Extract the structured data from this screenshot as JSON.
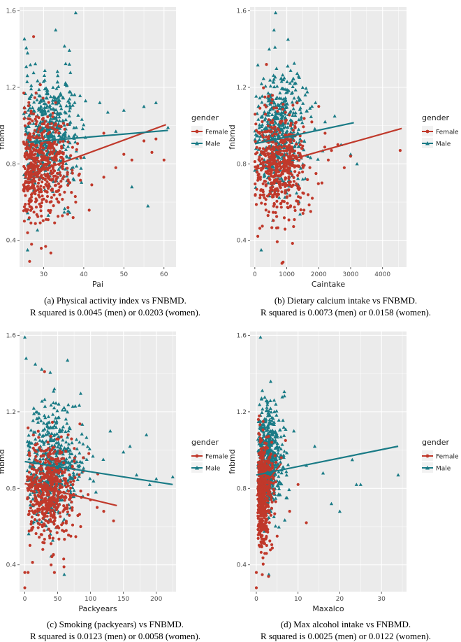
{
  "figure": {
    "panels": [
      {
        "caption_line1": "(a) Physical activity index vs FNBMD.",
        "caption_line2": "R squared is 0.0045 (men) or 0.0203 (women)."
      },
      {
        "caption_line1": "(b) Dietary calcium intake vs FNBMD.",
        "caption_line2": "R squared is 0.0073 (men) or 0.0158 (women)."
      },
      {
        "caption_line1": "(c) Smoking (packyears) vs FNBMD.",
        "caption_line2": "R squared is 0.0123 (men) or 0.0058 (women)."
      },
      {
        "caption_line1": "(d) Max alcohol intake vs FNBMD.",
        "caption_line2": "R squared is 0.0025 (men) or 0.0122 (women)."
      }
    ]
  },
  "colors": {
    "female": "#c0392b",
    "male": "#1a7b86",
    "panel_bg": "#ebebeb",
    "grid": "#ffffff"
  },
  "chart_data": [
    {
      "type": "scatter",
      "title": "(a) Physical activity index vs FNBMD.",
      "xlabel": "Pai",
      "ylabel": "fnbmd",
      "xlim": [
        24,
        63
      ],
      "ylim": [
        0.26,
        1.62
      ],
      "xticks": [
        30,
        40,
        50,
        60
      ],
      "yticks": [
        0.4,
        0.8,
        1.2,
        1.6
      ],
      "legend": {
        "title": "gender",
        "entries": [
          "Female",
          "Male"
        ],
        "placement": "right"
      },
      "series": [
        {
          "name": "Female",
          "marker": "circle",
          "cluster": {
            "x_center": 29.5,
            "x_spread": 3.5,
            "y_center": 0.8,
            "y_spread": 0.14
          },
          "outliers": [
            [
              26.5,
              0.29
            ],
            [
              27,
              0.38
            ],
            [
              26,
              0.44
            ],
            [
              45,
              0.73
            ],
            [
              48,
              0.78
            ],
            [
              50,
              0.85
            ],
            [
              52,
              0.82
            ],
            [
              55,
              0.92
            ],
            [
              58,
              0.93
            ],
            [
              60,
              0.82
            ],
            [
              57,
              0.86
            ],
            [
              45,
              0.96
            ],
            [
              42,
              0.69
            ],
            [
              38,
              0.6
            ]
          ],
          "fit": {
            "x": [
              26,
              60.5
            ],
            "y": [
              0.74,
              1.005
            ]
          }
        },
        {
          "name": "Male",
          "marker": "triangle",
          "cluster": {
            "x_center": 31,
            "x_spread": 3.5,
            "y_center": 0.96,
            "y_spread": 0.15
          },
          "outliers": [
            [
              26,
              0.35
            ],
            [
              38,
              1.59
            ],
            [
              26,
              1.38
            ],
            [
              33,
              1.5
            ],
            [
              46,
              1.07
            ],
            [
              50,
              1.08
            ],
            [
              55,
              1.1
            ],
            [
              58,
              1.12
            ],
            [
              61,
              0.99
            ],
            [
              52,
              0.68
            ],
            [
              56,
              0.58
            ],
            [
              48,
              0.97
            ],
            [
              44,
              1.12
            ]
          ],
          "fit": {
            "x": [
              26,
              61
            ],
            "y": [
              0.913,
              0.975
            ]
          }
        }
      ]
    },
    {
      "type": "scatter",
      "title": "(b) Dietary calcium intake vs FNBMD.",
      "xlabel": "Caintake",
      "ylabel": "fnbmd",
      "xlim": [
        -150,
        4750
      ],
      "ylim": [
        0.26,
        1.62
      ],
      "xticks": [
        0,
        1000,
        2000,
        3000,
        4000
      ],
      "yticks": [
        0.4,
        0.8,
        1.2,
        1.6
      ],
      "legend": {
        "title": "gender",
        "entries": [
          "Female",
          "Male"
        ],
        "placement": "right"
      },
      "series": [
        {
          "name": "Female",
          "marker": "circle",
          "cluster": {
            "x_center": 750,
            "x_spread": 380,
            "y_center": 0.8,
            "y_spread": 0.14
          },
          "outliers": [
            [
              850,
              0.28
            ],
            [
              4550,
              0.87
            ],
            [
              2800,
              0.78
            ],
            [
              2400,
              0.87
            ],
            [
              2200,
              0.96
            ],
            [
              2600,
              0.9
            ],
            [
              3000,
              0.84
            ],
            [
              2000,
              1.1
            ],
            [
              2300,
              0.82
            ],
            [
              1800,
              0.62
            ],
            [
              2100,
              0.7
            ]
          ],
          "fit": {
            "x": [
              0,
              4600
            ],
            "y": [
              0.77,
              0.985
            ]
          }
        },
        {
          "name": "Male",
          "marker": "triangle",
          "cluster": {
            "x_center": 800,
            "x_spread": 400,
            "y_center": 0.96,
            "y_spread": 0.15
          },
          "outliers": [
            [
              650,
              1.59
            ],
            [
              600,
              1.5
            ],
            [
              450,
              1.4
            ],
            [
              3000,
              0.85
            ],
            [
              3200,
              0.8
            ],
            [
              2700,
              0.9
            ],
            [
              2500,
              1.05
            ],
            [
              1900,
              1.12
            ],
            [
              2200,
              1.02
            ],
            [
              200,
              0.35
            ],
            [
              1500,
              0.72
            ]
          ],
          "fit": {
            "x": [
              0,
              3100
            ],
            "y": [
              0.905,
              1.015
            ]
          }
        }
      ]
    },
    {
      "type": "scatter",
      "title": "(c) Smoking (packyears) vs FNBMD.",
      "xlabel": "Packyears",
      "ylabel": "fnbmd",
      "xlim": [
        -8,
        230
      ],
      "ylim": [
        0.26,
        1.62
      ],
      "xticks": [
        0,
        50,
        100,
        150,
        200
      ],
      "yticks": [
        0.4,
        0.8,
        1.2,
        1.6
      ],
      "legend": {
        "title": "gender",
        "entries": [
          "Female",
          "Male"
        ],
        "placement": "right"
      },
      "series": [
        {
          "name": "Female",
          "marker": "circle",
          "cluster": {
            "x_center": 28,
            "x_spread": 25,
            "y_center": 0.78,
            "y_spread": 0.13
          },
          "outliers": [
            [
              0,
              0.28
            ],
            [
              0,
              0.36
            ],
            [
              5,
              0.36
            ],
            [
              40,
              0.4
            ],
            [
              45,
              0.36
            ],
            [
              120,
              0.68
            ],
            [
              135,
              0.63
            ],
            [
              100,
              0.74
            ],
            [
              110,
              0.7
            ],
            [
              85,
              0.6
            ],
            [
              30,
              1.41
            ],
            [
              70,
              0.55
            ]
          ],
          "fit": {
            "x": [
              0,
              140
            ],
            "y": [
              0.825,
              0.71
            ]
          }
        },
        {
          "name": "Male",
          "marker": "triangle",
          "cluster": {
            "x_center": 32,
            "x_spread": 30,
            "y_center": 0.93,
            "y_spread": 0.15
          },
          "outliers": [
            [
              0,
              1.59
            ],
            [
              2,
              1.48
            ],
            [
              65,
              1.47
            ],
            [
              225,
              0.86
            ],
            [
              200,
              0.85
            ],
            [
              185,
              1.08
            ],
            [
              170,
              0.87
            ],
            [
              160,
              1.02
            ],
            [
              150,
              0.99
            ],
            [
              130,
              1.1
            ],
            [
              190,
              0.82
            ],
            [
              60,
              0.35
            ],
            [
              45,
              1.32
            ]
          ],
          "fit": {
            "x": [
              0,
              225
            ],
            "y": [
              0.94,
              0.82
            ]
          }
        }
      ]
    },
    {
      "type": "scatter",
      "title": "(d) Max alcohol intake vs FNBMD.",
      "xlabel": "Maxalco",
      "ylabel": "fnbmd",
      "xlim": [
        -1.5,
        36
      ],
      "ylim": [
        0.26,
        1.62
      ],
      "xticks": [
        0,
        10,
        20,
        30
      ],
      "yticks": [
        0.4,
        0.8,
        1.2,
        1.6
      ],
      "legend": {
        "title": "gender",
        "entries": [
          "Female",
          "Male"
        ],
        "placement": "right"
      },
      "series": [
        {
          "name": "Female",
          "marker": "circle",
          "cluster": {
            "x_center": 1,
            "x_spread": 1.4,
            "y_center": 0.78,
            "y_spread": 0.14
          },
          "outliers": [
            [
              0,
              0.28
            ],
            [
              0,
              0.36
            ],
            [
              6,
              0.96
            ],
            [
              8,
              0.68
            ],
            [
              10,
              0.82
            ],
            [
              12,
              0.62
            ],
            [
              7,
              1.05
            ],
            [
              5,
              0.55
            ]
          ],
          "fit": {
            "x": [
              0,
              6
            ],
            "y": [
              0.76,
              0.93
            ]
          }
        },
        {
          "name": "Male",
          "marker": "triangle",
          "cluster": {
            "x_center": 2.2,
            "x_spread": 2.2,
            "y_center": 0.96,
            "y_spread": 0.15
          },
          "outliers": [
            [
              1,
              1.59
            ],
            [
              34,
              0.87
            ],
            [
              24,
              0.82
            ],
            [
              23,
              0.95
            ],
            [
              25,
              0.82
            ],
            [
              20,
              0.68
            ],
            [
              16,
              0.88
            ],
            [
              12,
              0.92
            ],
            [
              14,
              1.02
            ],
            [
              3,
              0.35
            ],
            [
              9,
              1.1
            ],
            [
              18,
              0.72
            ]
          ],
          "fit": {
            "x": [
              0,
              34
            ],
            "y": [
              0.87,
              1.02
            ]
          }
        }
      ]
    }
  ]
}
